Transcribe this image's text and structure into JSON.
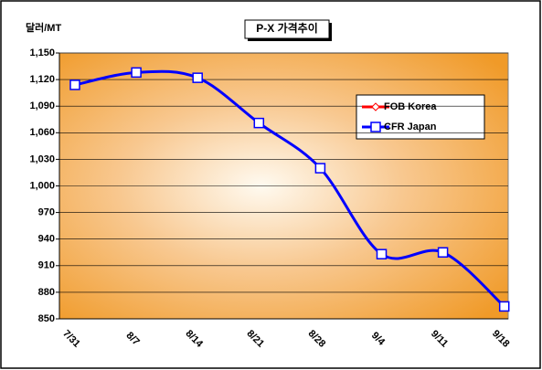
{
  "chart_data": {
    "type": "line",
    "title": "P-X 가격추이",
    "y_label": "달러/MT",
    "categories": [
      "7/31",
      "8/7",
      "8/14",
      "8/21",
      "8/28",
      "9/4",
      "9/11",
      "9/18"
    ],
    "series": [
      {
        "name": "FOB Korea",
        "color": "#ff0000",
        "values": [
          null,
          null,
          null,
          null,
          null,
          null,
          null,
          null
        ]
      },
      {
        "name": "CFR Japan",
        "color": "#0000ff",
        "values": [
          1114,
          1128,
          1122,
          1071,
          1020,
          923,
          925,
          864
        ]
      }
    ],
    "ylim": [
      850,
      1150
    ],
    "yticks": [
      850,
      880,
      910,
      940,
      970,
      {
        "value": 1000,
        "label": "1,000"
      },
      {
        "value": 1030,
        "label": "1,030"
      },
      {
        "value": 1060,
        "label": "1,060"
      },
      {
        "value": 1090,
        "label": "1,090"
      },
      {
        "value": 1120,
        "label": "1,120"
      },
      {
        "value": 1150,
        "label": "1,150"
      }
    ],
    "grid": true,
    "smooth": true,
    "legend": "right"
  }
}
